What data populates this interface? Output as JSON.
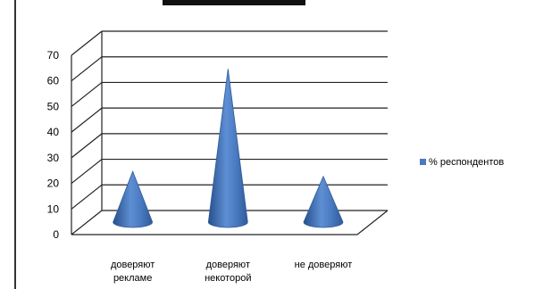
{
  "chart_data": {
    "type": "bar",
    "mark": "cone",
    "title": "",
    "xlabel": "",
    "ylabel": "",
    "ylim": [
      0,
      70
    ],
    "yticks": [
      0,
      10,
      20,
      30,
      40,
      50,
      60,
      70
    ],
    "grid": true,
    "three_d": true,
    "legend_position": "right",
    "categories": [
      [
        "доверяют",
        "рекламе"
      ],
      [
        "доверяют",
        "некоторой"
      ],
      [
        "не доверяют"
      ]
    ],
    "series": [
      {
        "name": "% респондентов",
        "color": "#4a7bc1",
        "values": [
          20,
          60,
          18
        ]
      }
    ]
  }
}
